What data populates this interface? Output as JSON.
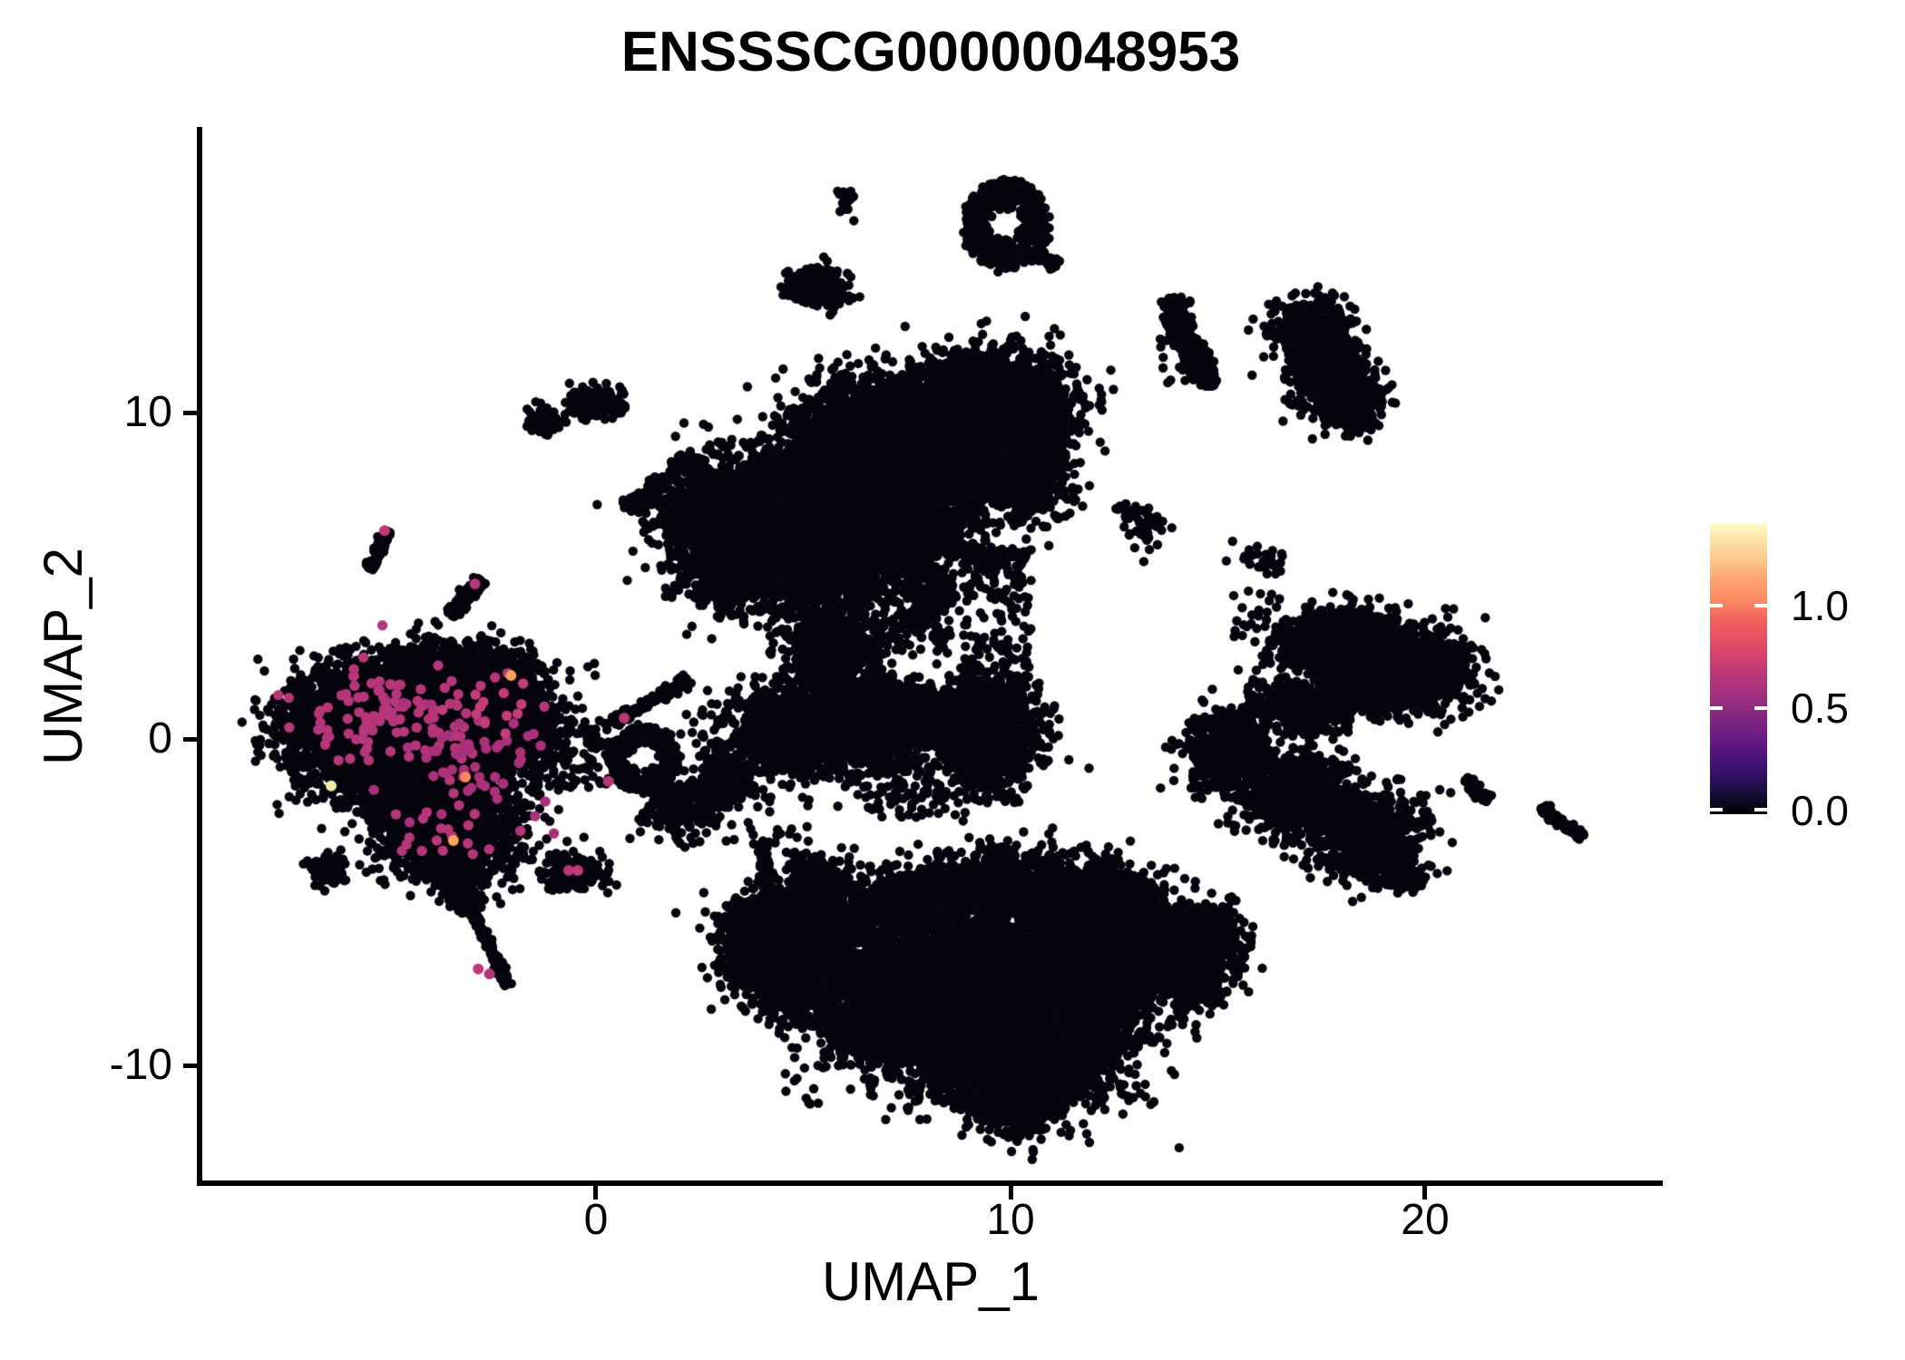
{
  "title": "ENSSSCG00000048953",
  "axes": {
    "x": {
      "label": "UMAP_1",
      "ticks": [
        "0",
        "10",
        "20"
      ]
    },
    "y": {
      "label": "UMAP_2",
      "ticks": [
        "10",
        "0",
        "-10"
      ]
    }
  },
  "legend": {
    "ticks": [
      "1.0",
      "0.5",
      "0.0"
    ],
    "colormap": "magma",
    "gradient_colors": [
      "#000004",
      "#120d31",
      "#331068",
      "#50127b",
      "#6b1d81",
      "#822681",
      "#9c2e7f",
      "#b63679",
      "#cf4070",
      "#e65164",
      "#f1605d",
      "#fb8861",
      "#fe9f6d",
      "#fec287",
      "#fcdea8",
      "#fcfdbf"
    ]
  },
  "chart_data": {
    "type": "scatter",
    "title": "ENSSSCG00000048953",
    "xlabel": "UMAP_1",
    "ylabel": "UMAP_2",
    "xlim": [
      -9.52,
      25.67
    ],
    "ylim": [
      -13.53,
      18.75
    ],
    "x_ticks": [
      0,
      10,
      20
    ],
    "y_ticks": [
      10,
      0,
      -10
    ],
    "grid": false,
    "legend_position": "right",
    "expression_scale": {
      "min": 0.0,
      "max": 1.35,
      "ticks": [
        1.0,
        0.5,
        0.0
      ]
    },
    "point_color": "#06040d",
    "point_radius_px": 5.2,
    "hot_point_radius_px": 5.7,
    "seed": 1234567,
    "clusters": [
      {
        "k": "g",
        "cx": -5.6,
        "cy": 0.3,
        "sx": 0.95,
        "sy": 0.8,
        "n": 2400
      },
      {
        "k": "g",
        "cx": -3.7,
        "cy": 1.3,
        "sx": 1.05,
        "sy": 0.75,
        "n": 2600
      },
      {
        "k": "g",
        "cx": -2.4,
        "cy": 0.3,
        "sx": 0.7,
        "sy": 0.65,
        "n": 1000
      },
      {
        "k": "g",
        "cx": -4.0,
        "cy": -1.5,
        "sx": 0.95,
        "sy": 0.8,
        "n": 1800
      },
      {
        "k": "g",
        "cx": -3.4,
        "cy": -3.1,
        "sx": 0.75,
        "sy": 0.65,
        "n": 950
      },
      {
        "k": "s",
        "x1": -3.9,
        "y1": -3.9,
        "x2": -3.0,
        "y2": -5.2,
        "w": 0.28,
        "n": 300
      },
      {
        "k": "s",
        "x1": -3.0,
        "y1": -5.2,
        "x2": -2.15,
        "y2": -7.5,
        "w": 0.12,
        "n": 190
      },
      {
        "k": "b",
        "x1": -7.5,
        "y1": -2.2,
        "x2": -1.3,
        "y2": 2.8,
        "n": 260
      },
      {
        "k": "s",
        "x1": -5.48,
        "y1": 5.2,
        "x2": -5.05,
        "y2": 6.35,
        "w": 0.15,
        "n": 85
      },
      {
        "k": "s",
        "x1": -3.5,
        "y1": 3.82,
        "x2": -2.78,
        "y2": 4.85,
        "w": 0.19,
        "n": 120
      },
      {
        "k": "g",
        "cx": -1.28,
        "cy": 9.78,
        "sx": 0.2,
        "sy": 0.22,
        "n": 70
      },
      {
        "k": "g",
        "cx": 0.0,
        "cy": 10.3,
        "sx": 0.34,
        "sy": 0.26,
        "n": 150
      },
      {
        "k": "b",
        "x1": -0.72,
        "y1": 9.95,
        "x2": -0.3,
        "y2": 10.3,
        "n": 8
      },
      {
        "k": "g",
        "cx": 1.0,
        "cy": 7.25,
        "sx": 0.18,
        "sy": 0.15,
        "n": 70
      },
      {
        "k": "s",
        "x1": 0.95,
        "y1": 7.15,
        "x2": 2.2,
        "y2": 8.6,
        "w": 0.17,
        "n": 130
      },
      {
        "k": "s",
        "x1": 2.25,
        "y1": 8.55,
        "x2": 3.1,
        "y2": 7.78,
        "w": 0.16,
        "n": 110
      },
      {
        "k": "g",
        "cx": 3.08,
        "cy": 7.8,
        "sx": 0.13,
        "sy": 0.12,
        "n": 40
      },
      {
        "k": "g",
        "cx": 5.35,
        "cy": 13.9,
        "sx": 0.32,
        "sy": 0.27,
        "n": 300
      },
      {
        "k": "g",
        "cx": 5.8,
        "cy": 13.62,
        "sx": 0.12,
        "sy": 0.12,
        "n": 25
      },
      {
        "k": "g",
        "cx": 5.67,
        "cy": 13.05,
        "sx": 0.05,
        "sy": 0.05,
        "n": 3
      },
      {
        "k": "g",
        "cx": 6.0,
        "cy": 16.5,
        "sx": 0.1,
        "sy": 0.2,
        "n": 22
      },
      {
        "k": "r",
        "cx": 9.9,
        "cy": 15.75,
        "rx": 1.0,
        "ry": 1.35,
        "hole": 0.42,
        "n": 560
      },
      {
        "k": "s",
        "x1": 10.6,
        "y1": 15.0,
        "x2": 11.1,
        "y2": 14.5,
        "w": 0.16,
        "n": 60
      },
      {
        "k": "g",
        "cx": 17.25,
        "cy": 12.45,
        "sx": 0.5,
        "sy": 0.5,
        "n": 400
      },
      {
        "k": "g",
        "cx": 17.45,
        "cy": 11.5,
        "sx": 0.35,
        "sy": 0.45,
        "n": 240
      },
      {
        "k": "g",
        "cx": 17.95,
        "cy": 10.75,
        "sx": 0.45,
        "sy": 0.5,
        "n": 400
      },
      {
        "k": "g",
        "cx": 18.3,
        "cy": 9.95,
        "sx": 0.3,
        "sy": 0.25,
        "n": 110
      },
      {
        "k": "b",
        "x1": 16.6,
        "y1": 10.2,
        "x2": 17.2,
        "y2": 11.6,
        "n": 22
      },
      {
        "k": "s",
        "x1": 13.95,
        "y1": 13.5,
        "x2": 14.05,
        "y2": 12.5,
        "w": 0.3,
        "n": 210
      },
      {
        "k": "s",
        "x1": 14.05,
        "y1": 12.5,
        "x2": 14.6,
        "y2": 11.6,
        "w": 0.28,
        "n": 190
      },
      {
        "k": "s",
        "x1": 14.55,
        "y1": 11.6,
        "x2": 14.8,
        "y2": 10.8,
        "w": 0.24,
        "n": 140
      },
      {
        "k": "b",
        "x1": 13.6,
        "y1": 10.9,
        "x2": 14.35,
        "y2": 12.3,
        "n": 20
      },
      {
        "k": "g",
        "cx": 9.6,
        "cy": 10.0,
        "sx": 0.85,
        "sy": 0.9,
        "n": 2400
      },
      {
        "k": "g",
        "cx": 8.3,
        "cy": 9.0,
        "sx": 0.9,
        "sy": 0.95,
        "n": 1700
      },
      {
        "k": "g",
        "cx": 6.7,
        "cy": 7.8,
        "sx": 1.0,
        "sy": 1.0,
        "n": 1900
      },
      {
        "k": "g",
        "cx": 6.3,
        "cy": 9.6,
        "sx": 0.75,
        "sy": 0.8,
        "n": 850
      },
      {
        "k": "g",
        "cx": 4.3,
        "cy": 6.9,
        "sx": 1.0,
        "sy": 1.0,
        "n": 1900
      },
      {
        "k": "g",
        "cx": 2.7,
        "cy": 6.9,
        "sx": 0.6,
        "sy": 0.55,
        "n": 550
      },
      {
        "k": "g",
        "cx": 3.3,
        "cy": 5.2,
        "sx": 0.7,
        "sy": 0.65,
        "n": 650
      },
      {
        "k": "g",
        "cx": 5.5,
        "cy": 5.3,
        "sx": 0.9,
        "sy": 0.8,
        "n": 850
      },
      {
        "k": "g",
        "cx": 7.4,
        "cy": 6.2,
        "sx": 1.0,
        "sy": 0.9,
        "n": 750
      },
      {
        "k": "g",
        "cx": 10.5,
        "cy": 8.4,
        "sx": 0.55,
        "sy": 0.9,
        "n": 520
      },
      {
        "k": "b",
        "x1": 4.3,
        "y1": 2.6,
        "x2": 8.6,
        "y2": 5.2,
        "n": 240
      },
      {
        "k": "b",
        "x1": 8.8,
        "y1": 1.9,
        "x2": 10.5,
        "y2": 5.9,
        "n": 130
      },
      {
        "k": "s",
        "x1": 7.55,
        "y1": 3.5,
        "x2": 8.5,
        "y2": 4.6,
        "w": 0.26,
        "n": 280
      },
      {
        "k": "s",
        "x1": 8.5,
        "y1": 4.6,
        "x2": 8.28,
        "y2": 4.95,
        "w": 0.16,
        "n": 50
      },
      {
        "k": "g",
        "cx": 5.75,
        "cy": 2.7,
        "sx": 0.5,
        "sy": 0.55,
        "n": 600
      },
      {
        "k": "g",
        "cx": 5.9,
        "cy": 0.4,
        "sx": 1.2,
        "sy": 0.7,
        "n": 2000
      },
      {
        "k": "g",
        "cx": 4.75,
        "cy": 0.1,
        "sx": 0.55,
        "sy": 0.5,
        "n": 550
      },
      {
        "k": "g",
        "cx": 7.1,
        "cy": 0.7,
        "sx": 0.6,
        "sy": 0.55,
        "n": 600
      },
      {
        "k": "g",
        "cx": 9.4,
        "cy": 0.2,
        "sx": 0.65,
        "sy": 0.85,
        "n": 1100
      },
      {
        "k": "b",
        "x1": 8.6,
        "y1": -2.0,
        "x2": 10.3,
        "y2": 1.9,
        "n": 170
      },
      {
        "k": "b",
        "x1": 6.5,
        "y1": -2.4,
        "x2": 8.5,
        "y2": -1.3,
        "n": 55
      },
      {
        "k": "g",
        "cx": 9.8,
        "cy": 5.35,
        "sx": 0.3,
        "sy": 0.22,
        "n": 32
      },
      {
        "k": "g",
        "cx": 12.85,
        "cy": 6.95,
        "sx": 0.18,
        "sy": 0.22,
        "n": 28
      },
      {
        "k": "g",
        "cx": 13.3,
        "cy": 6.55,
        "sx": 0.22,
        "sy": 0.28,
        "n": 42
      },
      {
        "k": "g",
        "cx": 2.0,
        "cy": -2.1,
        "sx": 0.45,
        "sy": 0.45,
        "n": 260
      },
      {
        "k": "g",
        "cx": 3.15,
        "cy": -1.3,
        "sx": 0.35,
        "sy": 0.4,
        "n": 200
      },
      {
        "k": "s",
        "x1": 4.0,
        "y1": -3.15,
        "x2": 4.15,
        "y2": -4.55,
        "w": 0.15,
        "n": 85
      },
      {
        "k": "g",
        "cx": 5.3,
        "cy": -4.1,
        "sx": 0.3,
        "sy": 0.35,
        "n": 150
      },
      {
        "k": "b",
        "x1": 2.3,
        "y1": -3.3,
        "x2": 5.2,
        "y2": 0.3,
        "n": 60
      },
      {
        "k": "r",
        "cx": 1.15,
        "cy": -0.6,
        "rx": 0.8,
        "ry": 0.95,
        "hole": 0.4,
        "n": 560
      },
      {
        "k": "s",
        "x1": 0.45,
        "y1": 0.55,
        "x2": 2.2,
        "y2": 1.8,
        "w": 0.18,
        "n": 110
      },
      {
        "k": "b",
        "x1": -1.3,
        "y1": -1.5,
        "x2": 0.3,
        "y2": 0.6,
        "n": 100
      },
      {
        "k": "g",
        "cx": -0.6,
        "cy": -4.05,
        "sx": 0.4,
        "sy": 0.3,
        "n": 170
      },
      {
        "k": "g",
        "cx": -6.45,
        "cy": -4.0,
        "sx": 0.25,
        "sy": 0.2,
        "n": 85
      },
      {
        "k": "g",
        "cx": 4.15,
        "cy": -5.5,
        "sx": 0.5,
        "sy": 0.4,
        "n": 420
      },
      {
        "k": "g",
        "cx": 3.8,
        "cy": -6.5,
        "sx": 0.45,
        "sy": 0.55,
        "n": 480
      },
      {
        "k": "g",
        "cx": 4.8,
        "cy": -7.4,
        "sx": 0.6,
        "sy": 0.55,
        "n": 620
      },
      {
        "k": "s",
        "x1": 4.3,
        "y1": -5.1,
        "x2": 6.0,
        "y2": -4.5,
        "w": 0.3,
        "n": 330
      },
      {
        "k": "g",
        "cx": 5.4,
        "cy": -5.4,
        "sx": 0.45,
        "sy": 0.4,
        "n": 280
      },
      {
        "k": "g",
        "cx": 5.6,
        "cy": -6.6,
        "sx": 0.5,
        "sy": 0.5,
        "n": 380
      },
      {
        "k": "g",
        "cx": 8.3,
        "cy": -7.3,
        "sx": 1.2,
        "sy": 1.1,
        "n": 2800
      },
      {
        "k": "g",
        "cx": 10.6,
        "cy": -8.7,
        "sx": 1.2,
        "sy": 1.0,
        "n": 2400
      },
      {
        "k": "g",
        "cx": 11.9,
        "cy": -6.6,
        "sx": 1.0,
        "sy": 1.0,
        "n": 1800
      },
      {
        "k": "g",
        "cx": 10.2,
        "cy": -10.6,
        "sx": 0.75,
        "sy": 0.65,
        "n": 850
      },
      {
        "k": "s",
        "x1": 10.1,
        "y1": -11.3,
        "x2": 10.5,
        "y2": -12.0,
        "w": 0.25,
        "n": 170
      },
      {
        "k": "g",
        "cx": 9.1,
        "cy": -9.6,
        "sx": 0.8,
        "sy": 0.75,
        "n": 1000
      },
      {
        "k": "g",
        "cx": 13.5,
        "cy": -6.3,
        "sx": 0.75,
        "sy": 0.65,
        "n": 850
      },
      {
        "k": "g",
        "cx": 14.7,
        "cy": -6.1,
        "sx": 0.5,
        "sy": 0.5,
        "n": 360
      },
      {
        "k": "g",
        "cx": 14.4,
        "cy": -7.4,
        "sx": 0.5,
        "sy": 0.45,
        "n": 270
      },
      {
        "k": "g",
        "cx": 7.3,
        "cy": -5.0,
        "sx": 0.8,
        "sy": 0.5,
        "n": 600
      },
      {
        "k": "g",
        "cx": 9.9,
        "cy": -4.4,
        "sx": 1.0,
        "sy": 0.55,
        "n": 800
      },
      {
        "k": "g",
        "cx": 12.1,
        "cy": -4.9,
        "sx": 0.8,
        "sy": 0.5,
        "n": 600
      },
      {
        "k": "g",
        "cx": 6.9,
        "cy": -8.5,
        "sx": 0.7,
        "sy": 0.8,
        "n": 800
      },
      {
        "k": "b",
        "x1": 4.5,
        "y1": -11.4,
        "x2": 13.5,
        "y2": -4.3,
        "n": 300
      },
      {
        "k": "g",
        "cx": 15.3,
        "cy": -0.4,
        "sx": 0.55,
        "sy": 0.6,
        "n": 480
      },
      {
        "k": "b",
        "x1": 14.4,
        "y1": -1.6,
        "x2": 16.2,
        "y2": 0.8,
        "n": 70
      },
      {
        "k": "g",
        "cx": 16.9,
        "cy": -1.7,
        "sx": 0.65,
        "sy": 0.6,
        "n": 700
      },
      {
        "k": "g",
        "cx": 18.5,
        "cy": -2.9,
        "sx": 0.7,
        "sy": 0.65,
        "n": 800
      },
      {
        "k": "g",
        "cx": 19.3,
        "cy": -4.1,
        "sx": 0.35,
        "sy": 0.3,
        "n": 170
      },
      {
        "k": "b",
        "x1": 15.9,
        "y1": -2.6,
        "x2": 17.9,
        "y2": -0.6,
        "n": 100
      },
      {
        "k": "g",
        "cx": 16.15,
        "cy": 5.55,
        "sx": 0.28,
        "sy": 0.22,
        "n": 30
      },
      {
        "k": "b",
        "x1": 15.7,
        "y1": 0.7,
        "x2": 16.5,
        "y2": 1.85,
        "n": 45
      },
      {
        "k": "b",
        "x1": 15.3,
        "y1": 2.9,
        "x2": 16.6,
        "y2": 4.6,
        "n": 22
      },
      {
        "k": "g",
        "cx": 18.0,
        "cy": 2.9,
        "sx": 0.75,
        "sy": 0.5,
        "n": 1000
      },
      {
        "k": "g",
        "cx": 19.6,
        "cy": 2.1,
        "sx": 0.75,
        "sy": 0.6,
        "n": 1200
      },
      {
        "k": "g",
        "cx": 18.5,
        "cy": 1.7,
        "sx": 0.5,
        "sy": 0.45,
        "n": 500
      },
      {
        "k": "g",
        "cx": 17.2,
        "cy": 1.0,
        "sx": 0.45,
        "sy": 0.4,
        "n": 230
      },
      {
        "k": "b",
        "x1": 16.6,
        "y1": 0.2,
        "x2": 18.2,
        "y2": 1.6,
        "n": 80
      },
      {
        "k": "s",
        "x1": 21.0,
        "y1": -1.2,
        "x2": 21.5,
        "y2": -1.9,
        "w": 0.15,
        "n": 55
      },
      {
        "k": "s",
        "x1": 22.75,
        "y1": -2.1,
        "x2": 23.75,
        "y2": -3.0,
        "w": 0.17,
        "n": 85
      }
    ],
    "hot_clusters": [
      {
        "k": "g",
        "cx": -4.8,
        "cy": 0.6,
        "sx": 1.25,
        "sy": 0.85,
        "n": 110,
        "color": "#b53679"
      },
      {
        "k": "g",
        "cx": -3.2,
        "cy": -0.6,
        "sx": 0.9,
        "sy": 0.9,
        "n": 52,
        "color": "#a93179"
      },
      {
        "k": "g",
        "cx": -3.6,
        "cy": -2.8,
        "sx": 0.55,
        "sy": 0.6,
        "n": 20,
        "color": "#b53679"
      },
      {
        "k": "g",
        "cx": -2.35,
        "cy": 1.0,
        "sx": 0.5,
        "sy": 0.5,
        "n": 12,
        "color": "#c33d77"
      }
    ],
    "accent_points": [
      {
        "x": -2.05,
        "y": 1.94,
        "color": "#fba25f"
      },
      {
        "x": -3.15,
        "y": -1.17,
        "color": "#f98a5e"
      },
      {
        "x": -3.44,
        "y": -3.11,
        "color": "#fba25f"
      },
      {
        "x": -6.39,
        "y": -1.44,
        "color": "#f2eda2"
      },
      {
        "x": -2.84,
        "y": -7.05,
        "color": "#c03a78"
      },
      {
        "x": -2.57,
        "y": -7.2,
        "color": "#b53679"
      },
      {
        "x": -0.66,
        "y": -4.03,
        "color": "#b53679"
      },
      {
        "x": -0.44,
        "y": -4.03,
        "color": "#c03a78"
      },
      {
        "x": 0.68,
        "y": 0.64,
        "color": "#b53679"
      },
      {
        "x": 0.3,
        "y": -1.3,
        "color": "#b53679"
      },
      {
        "x": -5.1,
        "y": 6.38,
        "color": "#c03a78"
      },
      {
        "x": -2.92,
        "y": 4.75,
        "color": "#b53679"
      }
    ]
  }
}
